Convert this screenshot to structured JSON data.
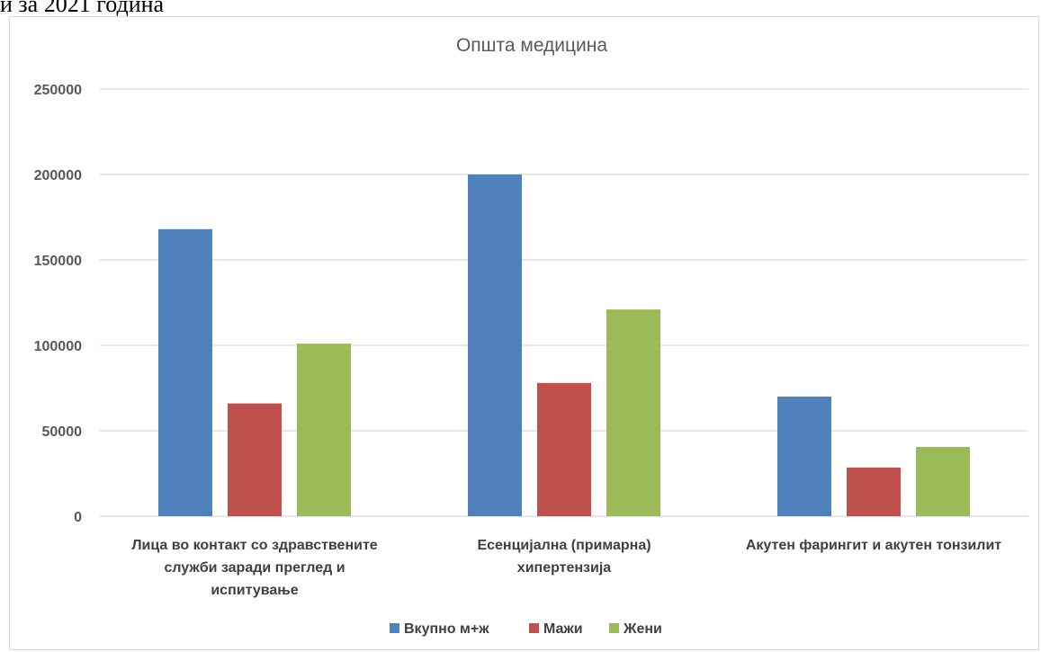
{
  "page": {
    "header_text": "и за 2021 година"
  },
  "chart_data": {
    "type": "bar",
    "title": "Општа медицина",
    "xlabel": "",
    "ylabel": "",
    "ylim": [
      0,
      250000
    ],
    "yticks": [
      0,
      50000,
      100000,
      150000,
      200000,
      250000
    ],
    "grid": true,
    "legend_position": "bottom",
    "categories": [
      [
        "Лица во контакт со здравствените",
        "служби заради преглед и",
        "испитување"
      ],
      [
        "Есенцијална (примарна)",
        "хипертензија"
      ],
      [
        "Акутен фарингит и акутен тонзилит"
      ]
    ],
    "series": [
      {
        "name": "Вкупно м+ж",
        "color": "#4f81bd",
        "values": [
          168000,
          200000,
          70000
        ]
      },
      {
        "name": "Мажи",
        "color": "#c0504d",
        "values": [
          66000,
          78000,
          28500
        ]
      },
      {
        "name": "Жени",
        "color": "#9bbb59",
        "values": [
          101000,
          121000,
          40500
        ]
      }
    ]
  }
}
